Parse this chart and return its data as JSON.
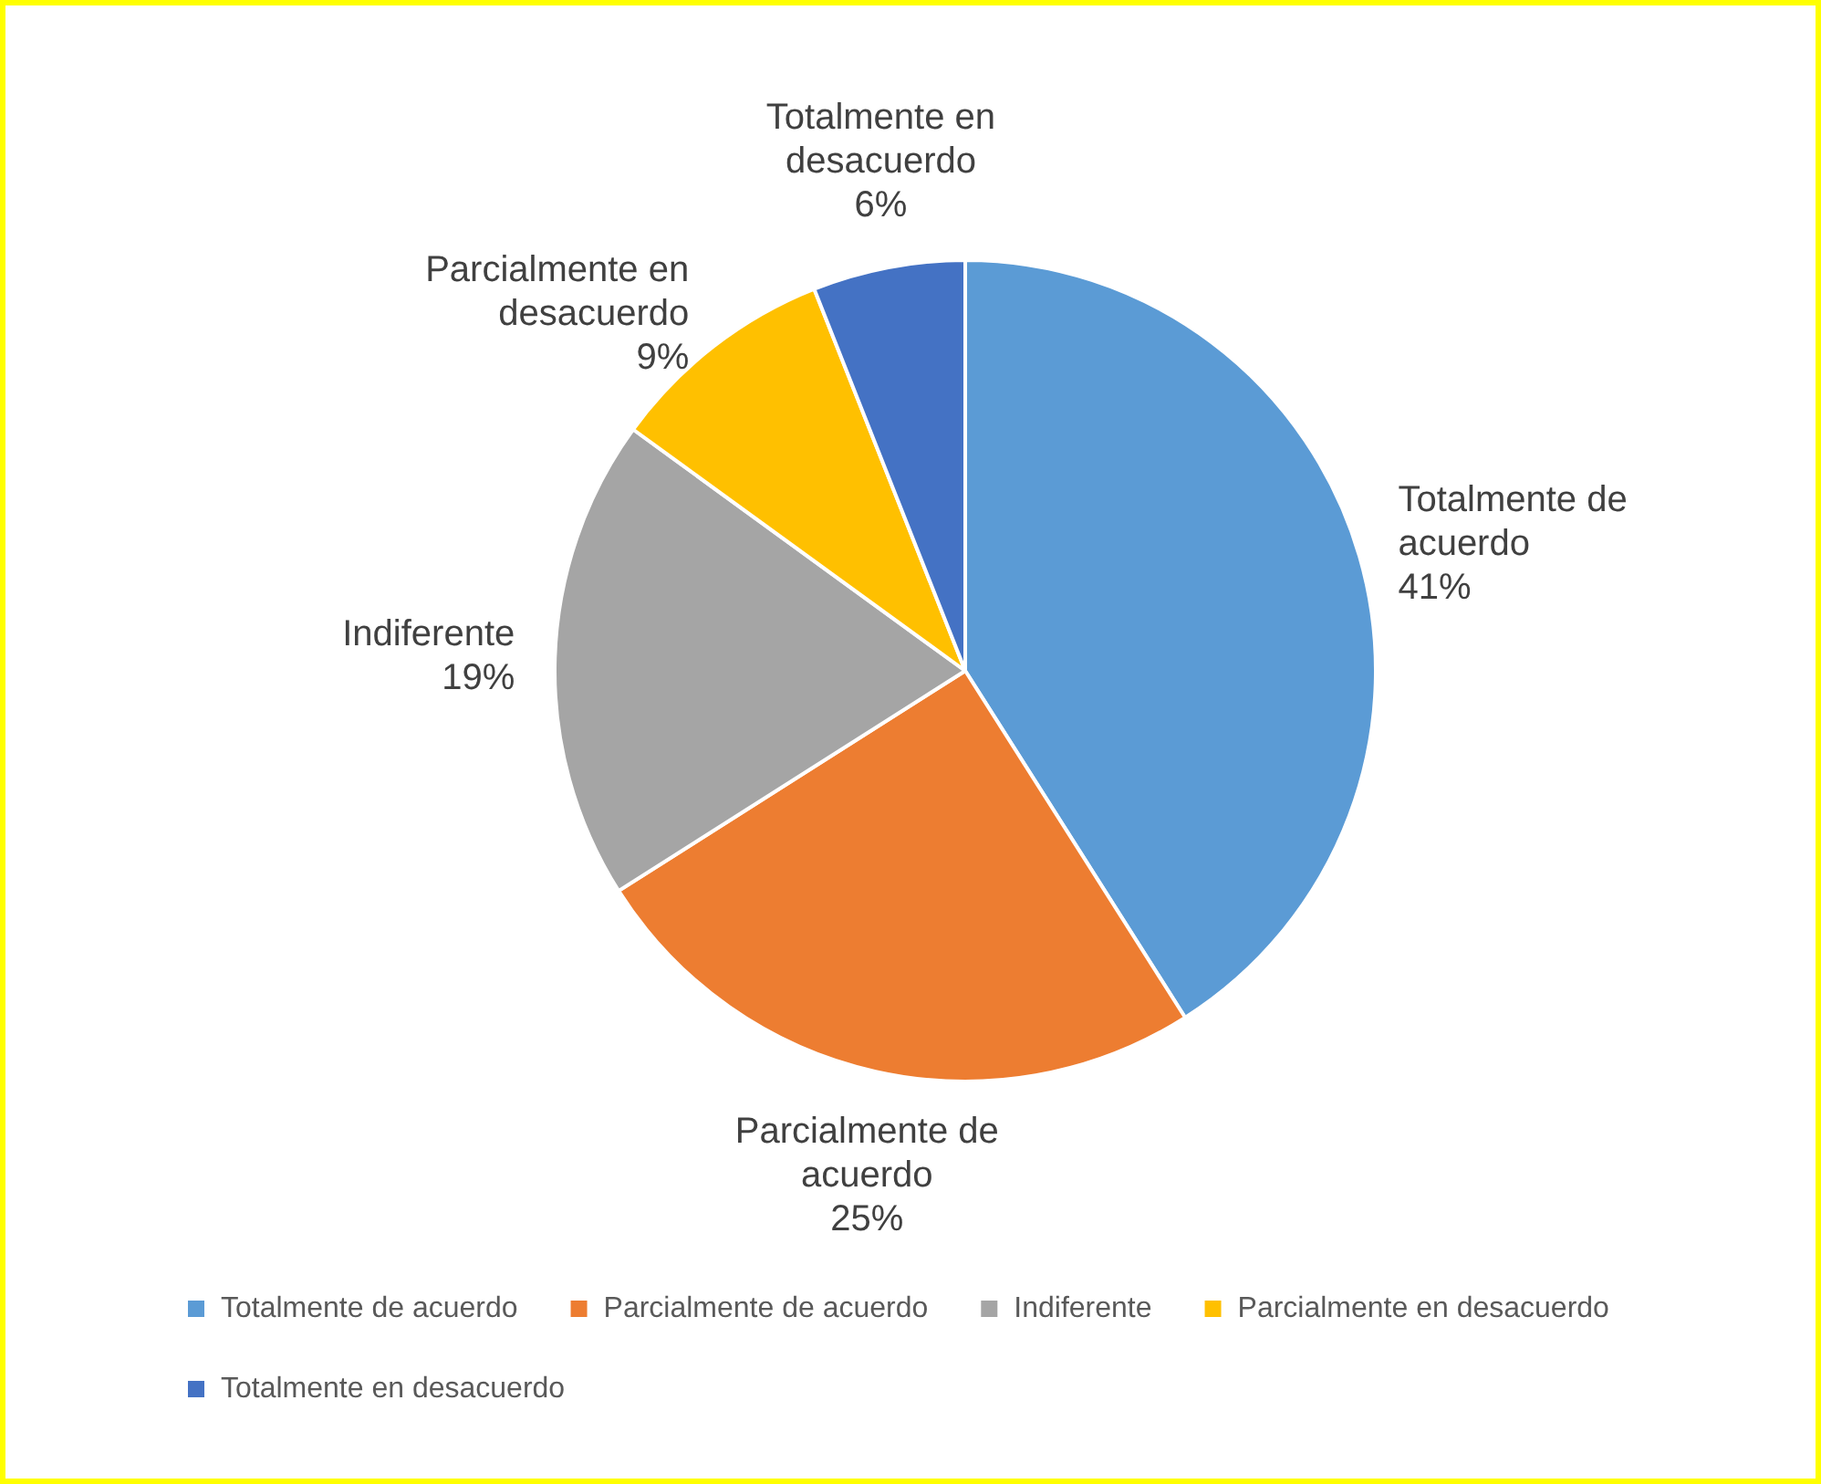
{
  "chart_data": {
    "type": "pie",
    "categories": [
      "Totalmente de acuerdo",
      "Parcialmente de acuerdo",
      "Indiferente",
      "Parcialmente en desacuerdo",
      "Totalmente en desacuerdo"
    ],
    "values": [
      41,
      25,
      19,
      9,
      6
    ],
    "value_labels": [
      "41%",
      "25%",
      "19%",
      "9%",
      "6%"
    ],
    "colors": [
      "#5b9bd5",
      "#ed7d31",
      "#a5a5a5",
      "#ffc000",
      "#4472c4"
    ],
    "data_labels": true,
    "legend": "bottom"
  }
}
